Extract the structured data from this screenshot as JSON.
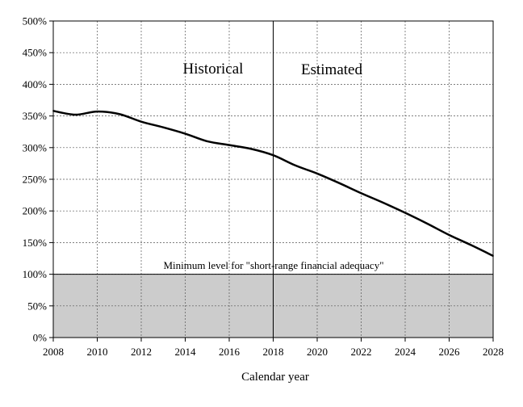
{
  "chart_data": {
    "type": "line",
    "title": "",
    "xlabel": "Calendar year",
    "ylabel": "",
    "xlim": [
      2008,
      2028
    ],
    "ylim": [
      0,
      500
    ],
    "x_ticks": [
      "2008",
      "2010",
      "2012",
      "2014",
      "2016",
      "2018",
      "2020",
      "2022",
      "2024",
      "2026",
      "2028"
    ],
    "y_ticks": [
      "0%",
      "50%",
      "100%",
      "150%",
      "200%",
      "250%",
      "300%",
      "350%",
      "400%",
      "450%",
      "500%"
    ],
    "grid": true,
    "divider_year": 2018,
    "section_labels": {
      "left": "Historical",
      "right": "Estimated"
    },
    "threshold": {
      "value": 100,
      "label": "Minimum level for \"short-range financial adequacy\""
    },
    "series": [
      {
        "x": [
          2008,
          2009,
          2010,
          2011,
          2012,
          2013,
          2014,
          2015,
          2016,
          2017,
          2018,
          2019,
          2020,
          2021,
          2022,
          2023,
          2024,
          2025,
          2026,
          2027,
          2028
        ],
        "values": [
          358,
          352,
          357,
          353,
          341,
          332,
          322,
          310,
          304,
          298,
          288,
          272,
          259,
          244,
          228,
          213,
          197,
          180,
          162,
          146,
          129
        ]
      }
    ],
    "colors": {
      "line": "#000000",
      "shade": "#cccccc",
      "grid": "#555555"
    }
  }
}
